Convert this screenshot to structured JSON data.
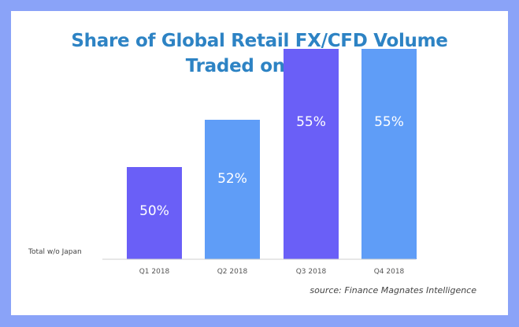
{
  "title_line1": "Share of Global Retail FX/CFD Volume",
  "title_line2": "Traded on MT4",
  "row_label": "Total w/o Japan",
  "source": "source: Finance Magnates Intelligence",
  "chart_data": {
    "type": "bar",
    "title": "Share of Global Retail FX/CFD Volume Traded on MT4",
    "categories": [
      "Q1 2018",
      "Q2 2018",
      "Q3 2018",
      "Q4 2018"
    ],
    "values": [
      50,
      52,
      55,
      55
    ],
    "data_labels": [
      "50%",
      "52%",
      "55%",
      "55%"
    ],
    "unit": "%",
    "colors": [
      "#6a5ff7",
      "#5f9df7",
      "#6a5ff7",
      "#5f9df7"
    ],
    "grid": false,
    "legend": "none"
  }
}
